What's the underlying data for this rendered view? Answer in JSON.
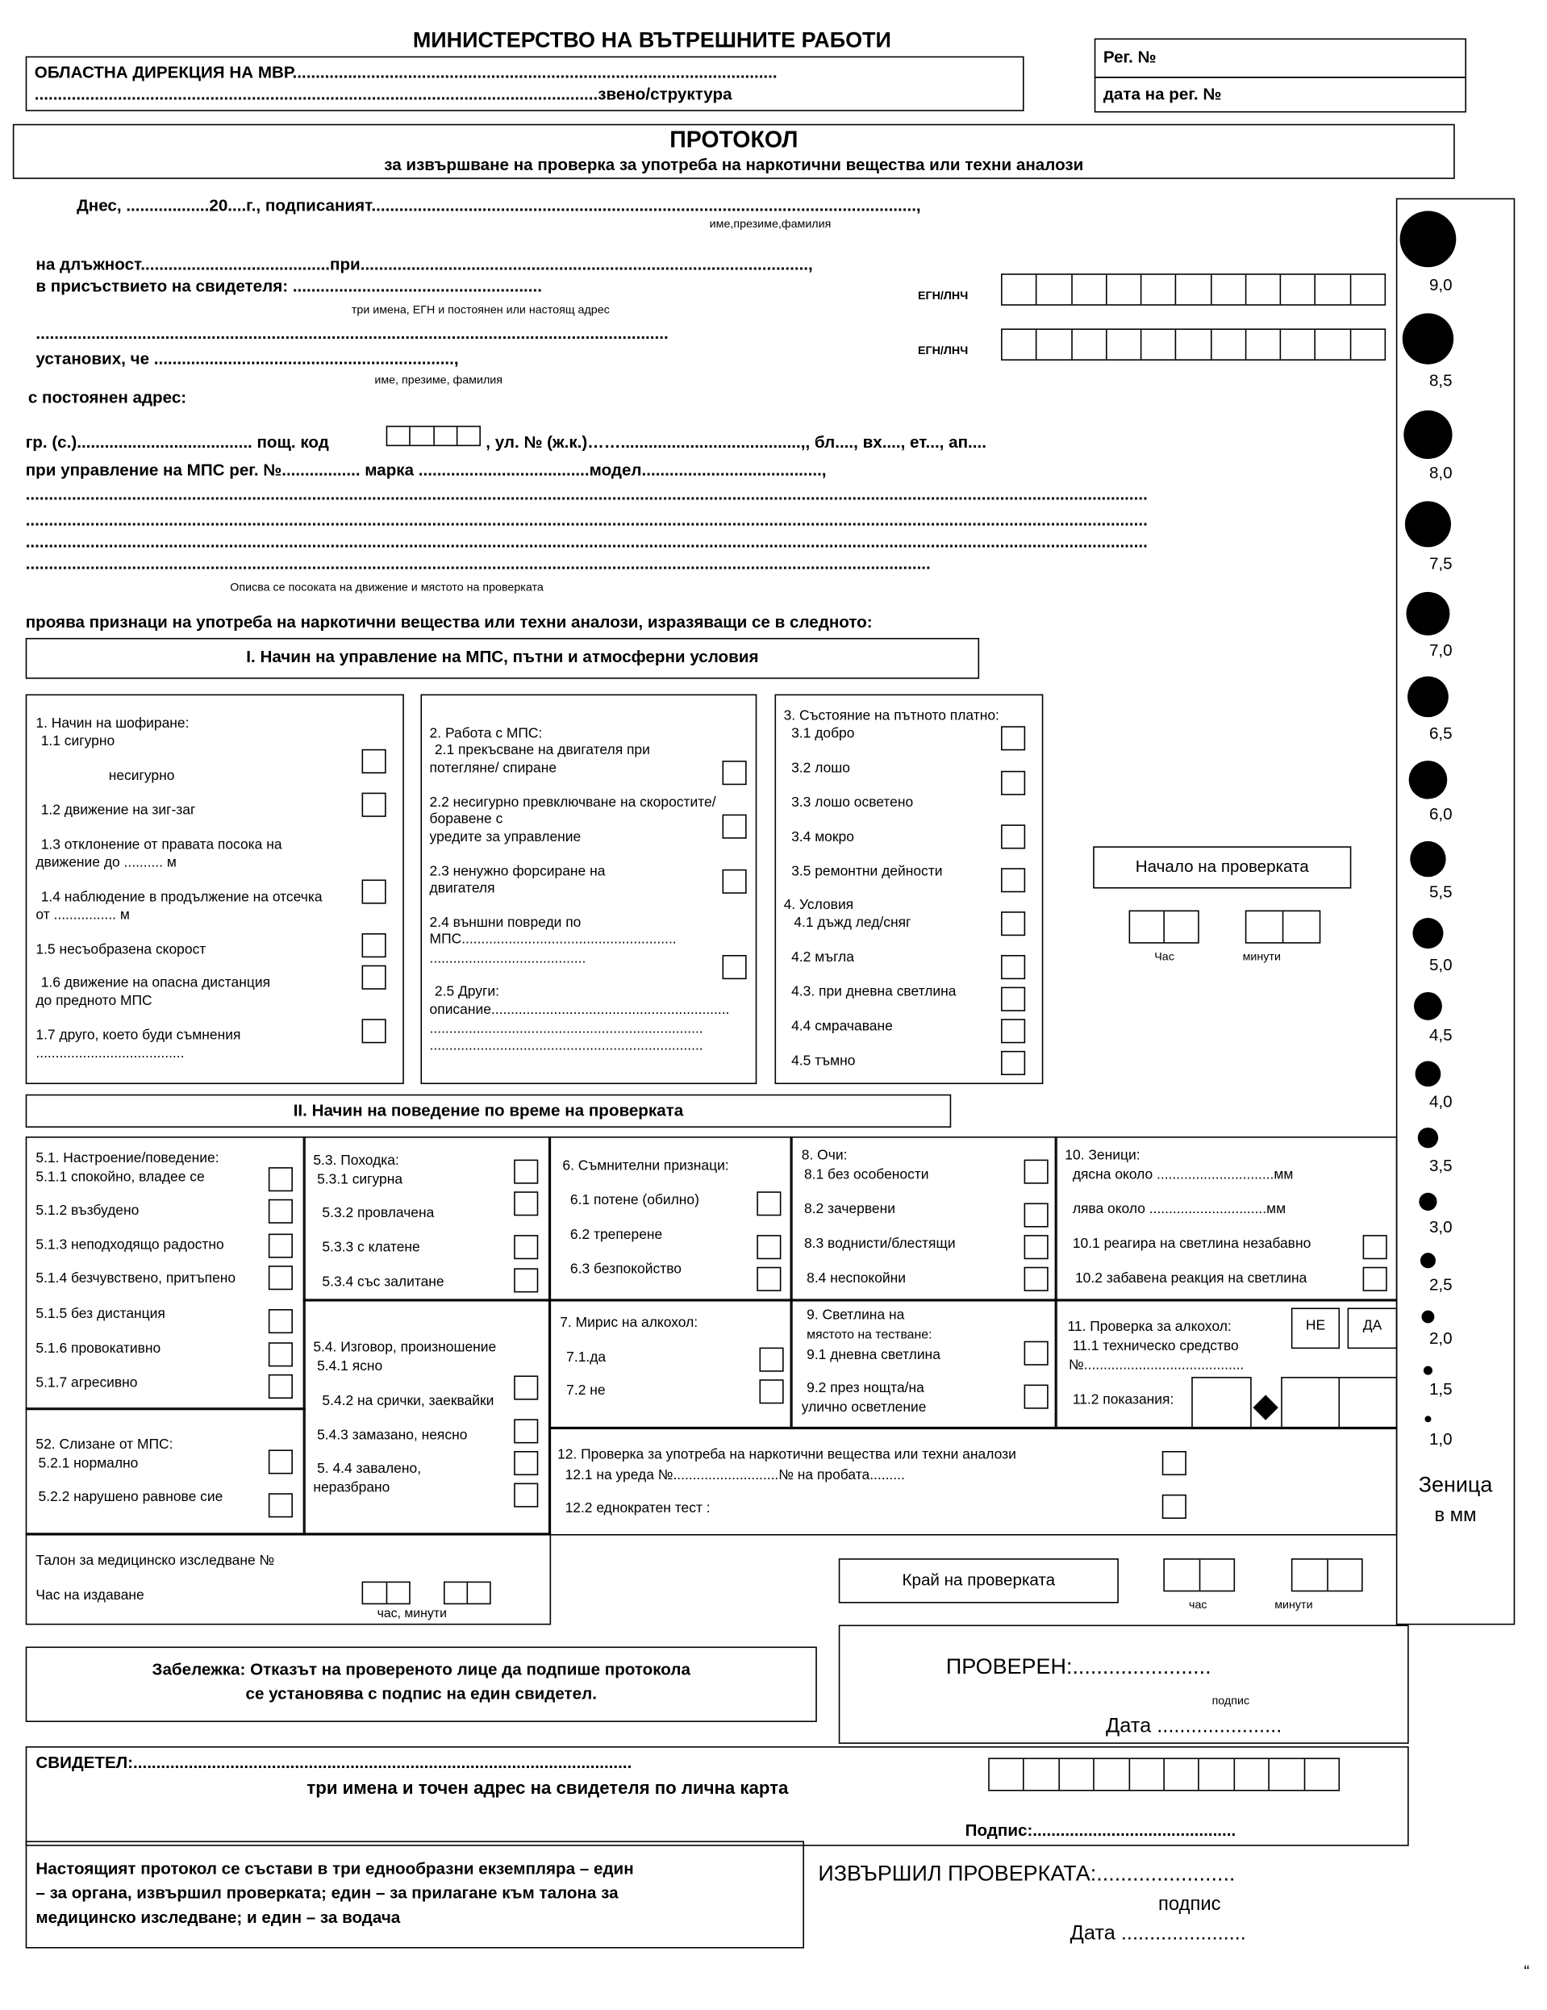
{
  "header": {
    "ministry": "МИНИСТЕРСТВО НА ВЪТРЕШНИТЕ РАБОТИ",
    "directorate": "ОБЛАСТНА ДИРЕКЦИЯ НА МВР.........................................................................................................",
    "unit": "..........................................................................................................................звено/структура",
    "reg_no": "Рег. №",
    "reg_date": "дата на рег. №"
  },
  "title": {
    "main": "ПРОТОКОЛ",
    "subtitle": "за извършване на проверка за употреба на наркотични вещества или техни аналози"
  },
  "intro": {
    "line1": "Днес, ..................20....г., подписаният......................................................................................................................,",
    "hint1": "име,презиме,фамилия",
    "line2": "на длъжност.........................................при.................................................................................................,",
    "line3": "в присъствието на свидетеля: ......................................................",
    "hint3": "три имена, ЕГН и постоянен или настоящ адрес",
    "egn1": "ЕГН/ЛНЧ",
    "line4": ".........................................................................................................................................",
    "line5": "установих, че .................................................................,",
    "egn2": "ЕГН/ЛНЧ",
    "hint5": "име, презиме, фамилия",
    "line6": "с постоянен адрес:",
    "city": "гр. (с.)...................................... пощ. код",
    "street": ", ул. № (ж.к.)…….......................................,, бл...., вх...., ет..., ап....",
    "vehicle": "при управление на МПС рег. №.................        марка .....................................модел.......................................,",
    "dots": "...................................................................................................................................................................................................................................................",
    "dots_short": "....................................................................................................................................................................................................",
    "hint_direction": "Описва се посоката на движение и мястото на проверката",
    "signs": "проява признаци на употреба на наркотични вещества или техни аналози, изразяващи се в следното:"
  },
  "section1": {
    "title": "I. Начин на управление на МПС, пътни и атмосферни условия",
    "b1": [
      "1. Начин на шофиране:",
      "1.1          сигурно",
      "несигурно",
      "1.2 движение на зиг-заг",
      "1.3 отклонение от правата посока на",
      "движение  до  .......... м",
      "1.4 наблюдение в продължение на отсечка",
      "от      ................ м",
      "1.5 несъобразена скорост",
      "1.6 движение на опасна дистанция",
      "до предното МПС",
      "1.7 друго, което буди съмнения",
      "......................................"
    ],
    "b2": [
      "2. Работа с МПС:",
      "2.1 прекъсване на двигателя  при",
      "потегляне/ спиране",
      "2.2 несигурно превключване на скоростите/",
      "боравене с",
      "уредите за управление",
      "2.3 ненужно форсиране на",
      "двигателя",
      "2.4 външни повреди по",
      "МПС.......................................................",
      "........................................",
      "2.5 Други:",
      "описание.............................................................",
      "......................................................................",
      "......................................................................"
    ],
    "b3": [
      "3. Състояние на пътното платно:",
      "3.1 добро",
      "3.2 лошо",
      "3.3 лошо осветено",
      "3.4 мокро",
      "3.5  ремонтни дейности",
      "4. Условия",
      "4.1 дъжд лед/сняг",
      "4.2 мъгла",
      "4.3. при дневна светлина",
      "4.4 смрачаване",
      "4.5 тъмно"
    ],
    "start": "Начало на проверката",
    "hour": "Час",
    "minutes": "минути"
  },
  "section2": {
    "title": "II. Начин на поведение по време на проверката",
    "b51": [
      "5.1. Настроение/поведение:",
      "5.1.1 спокойно, владее се",
      "5.1.2 възбудено",
      "5.1.3 неподходящо радостно",
      "5.1.4 безчувствено, притъпено",
      "5.1.5 без дистанция",
      "5.1.6 провокативно",
      "5.1.7 агресивно"
    ],
    "b52": [
      "52. Слизане от МПС:",
      "5.2.1  нормално",
      "5.2.2 нарушено равнове сие"
    ],
    "b53": [
      "5.3.  Походка:",
      "5.3.1 сигурна",
      "5.3.2 провлачена",
      "5.3.3 с клатене",
      "5.3.4 със залитане"
    ],
    "b54": [
      "5.4. Изговор, произношение",
      "5.4.1 ясно",
      "5.4.2 на срички, заеквайки",
      "5.4.3 замазано, неясно",
      "5. 4.4 завалено,",
      "неразбрано"
    ],
    "b6": [
      "6. Съмнителни признаци:",
      "6.1 потене (обилно)",
      "6.2 треперене",
      "6.3 безпокойство"
    ],
    "b7": [
      "7. Мирис на алкохол:",
      "7.1.да",
      "7.2  не"
    ],
    "b8": [
      "8. Очи:",
      "8.1 без особености",
      "8.2 зачервени",
      "8.3 воднисти/блестящи",
      "8.4  неспокойни"
    ],
    "b9": [
      "9. Светлина на",
      "мястото на тестване:",
      "9.1  дневна светлина",
      "9.2  през нощта/на",
      "улично осветление"
    ],
    "b10": [
      "10. Зеници:",
      "дясна около ..............................мм",
      "лява около ..............................мм",
      "10.1  реагира на светлина незабавно",
      "10.2  забавена реакция на светлина"
    ],
    "b11": [
      "11. Проверка за алкохол:",
      "11.1  техническо средство",
      "№.........................................",
      "11.2  показания:"
    ],
    "no": "НЕ",
    "yes": "ДА",
    "b12": [
      "12.   Проверка за употреба  на наркотични вещества или техни аналози",
      "12.1  на уреда №...........................№ на пробата.........",
      "12.2  еднократен тест :"
    ]
  },
  "talon": {
    "title": "Талон за медицинско изследване №",
    "issued": "Час на издаване",
    "hm": "час, минути"
  },
  "end": {
    "label": "Край на проверката",
    "hour": "час",
    "minutes": "минути"
  },
  "checked": {
    "label": "ПРОВЕРЕН:.......................",
    "sign": "подпис",
    "date": "Дата ......................"
  },
  "note": {
    "line1": "Забележка: Отказът на провереното лице да подпише протокола",
    "line2": "се установява с подпис на един свидетел."
  },
  "witness": {
    "label": "СВИДЕТЕЛ:............................................................................................................",
    "sub": "три имена и точен адрес на свидетеля по лична карта",
    "sign": "Подпис:............................................"
  },
  "footer": {
    "line1": "Настоящият протокол се състави в три еднообразни екземпляра – един",
    "line2": "– за органа, извършил проверката; един – за прилагане към талона за",
    "line3": "медицинско изследване; и един – за водача",
    "performed": "ИЗВЪРШИЛ ПРОВЕРКАТА:.......................",
    "sign": "подпис",
    "date": "Дата ......................",
    "mark": "“"
  },
  "pupil_scale": {
    "labels": [
      "9,0",
      "8,5",
      "8,0",
      "7,5",
      "7,0",
      "6,5",
      "6,0",
      "5,5",
      "5,0",
      "4,5",
      "4,0",
      "3,5",
      "3,0",
      "2,5",
      "2,0",
      "1,5",
      "1,0"
    ],
    "title1": "Зеница",
    "title2": "в мм"
  }
}
